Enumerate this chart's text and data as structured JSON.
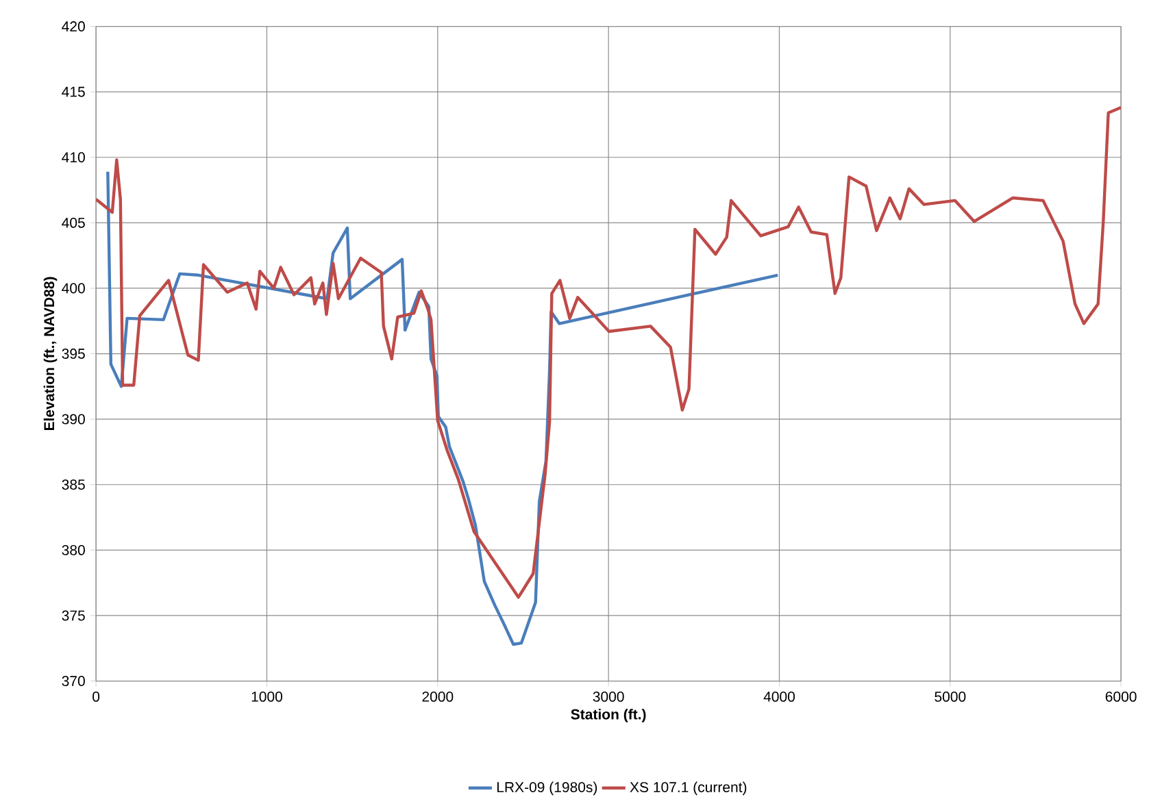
{
  "chart_data": {
    "type": "line",
    "xlabel": "Station (ft.)",
    "ylabel": "Elevation (ft., NAVD88)",
    "xlim": [
      0,
      6000
    ],
    "xticks": [
      0,
      1000,
      2000,
      3000,
      4000,
      5000,
      6000
    ],
    "ylim": [
      370,
      420
    ],
    "yticks": [
      370,
      375,
      380,
      385,
      390,
      395,
      400,
      405,
      410,
      415,
      420
    ],
    "grid": true,
    "legend": "bottom",
    "series": [
      {
        "name": "LRX-09 (1980s)",
        "color": "#4a7ebb",
        "x": [
          69,
          87,
          148,
          182,
          395,
          490,
          599,
          1353,
          1388,
          1471,
          1488,
          1792,
          1809,
          1891,
          1948,
          1961,
          1996,
          2004,
          2047,
          2069,
          2147,
          2178,
          2221,
          2273,
          2334,
          2386,
          2443,
          2490,
          2573,
          2595,
          2634,
          2655,
          2664,
          2712,
          3991
        ],
        "values": [
          408.9,
          394.2,
          392.5,
          397.7,
          397.6,
          401.1,
          401.0,
          399.2,
          402.7,
          404.6,
          399.2,
          402.2,
          396.8,
          399.7,
          398.6,
          394.6,
          393.3,
          390.2,
          389.4,
          387.9,
          385.3,
          384.0,
          381.9,
          377.6,
          375.8,
          374.4,
          372.8,
          372.9,
          376.0,
          383.7,
          386.8,
          393.7,
          398.2,
          397.3,
          401.0
        ]
      },
      {
        "name": "XS 107.1 (current)",
        "color": "#be4b48",
        "x": [
          0,
          95,
          121,
          143,
          156,
          221,
          256,
          425,
          538,
          599,
          629,
          768,
          885,
          937,
          959,
          1041,
          1081,
          1159,
          1258,
          1280,
          1328,
          1349,
          1388,
          1419,
          1549,
          1670,
          1683,
          1731,
          1766,
          1861,
          1904,
          1943,
          1961,
          2000,
          2056,
          2121,
          2213,
          2473,
          2559,
          2629,
          2655,
          2668,
          2716,
          2773,
          2820,
          3003,
          3246,
          3363,
          3432,
          3471,
          3506,
          3627,
          3692,
          3718,
          3891,
          4052,
          4113,
          4186,
          4278,
          4326,
          4360,
          4408,
          4508,
          4569,
          4647,
          4707,
          4759,
          4846,
          5028,
          5141,
          5366,
          5544,
          5661,
          5731,
          5783,
          5866,
          5896,
          5926,
          6000
        ],
        "values": [
          406.8,
          405.8,
          409.8,
          406.8,
          392.6,
          392.6,
          397.9,
          400.6,
          394.9,
          394.5,
          401.8,
          399.7,
          400.4,
          398.4,
          401.3,
          400.0,
          401.6,
          399.5,
          400.8,
          398.8,
          400.4,
          398.0,
          401.9,
          399.2,
          402.3,
          401.2,
          397.1,
          394.6,
          397.8,
          398.1,
          399.8,
          398.4,
          397.6,
          389.9,
          387.6,
          385.4,
          381.4,
          376.4,
          378.2,
          385.8,
          389.8,
          399.6,
          400.6,
          397.7,
          399.3,
          396.7,
          397.1,
          395.5,
          390.7,
          392.3,
          404.5,
          402.6,
          403.9,
          406.7,
          404.0,
          404.7,
          406.2,
          404.3,
          404.1,
          399.6,
          400.8,
          408.5,
          407.8,
          404.4,
          406.9,
          405.3,
          407.6,
          406.4,
          406.7,
          405.1,
          406.9,
          406.7,
          403.6,
          398.8,
          397.3,
          398.8,
          405.0,
          413.4,
          413.8
        ]
      }
    ]
  }
}
